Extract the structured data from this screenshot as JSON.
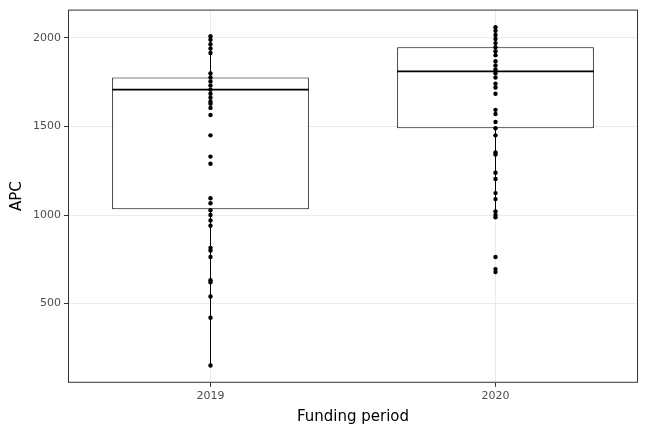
{
  "chart_data": {
    "type": "box",
    "x_label": "Funding period",
    "y_label": "APC",
    "categories": [
      "2019",
      "2020"
    ],
    "boxes": [
      {
        "whisker_low": 151,
        "q1": 1033,
        "median": 1708,
        "q3": 1777,
        "whisker_high": 2010
      },
      {
        "whisker_low": 987,
        "q1": 1490,
        "median": 1811,
        "q3": 1948,
        "whisker_high": 2060
      }
    ],
    "points": [
      [
        2010,
        1990,
        1965,
        1940,
        1915,
        1800,
        1777,
        1754,
        1731,
        1708,
        1685,
        1662,
        1640,
        1628,
        1605,
        1565,
        1450,
        1330,
        1290,
        1095,
        1067,
        1027,
        1000,
        970,
        940,
        815,
        800,
        763,
        632,
        620,
        540,
        420,
        151
      ],
      [
        2060,
        2040,
        2017,
        1994,
        1971,
        1948,
        1925,
        1902,
        1868,
        1845,
        1822,
        1800,
        1777,
        1742,
        1720,
        1685,
        1594,
        1571,
        1525,
        1490,
        1450,
        1353,
        1342,
        1239,
        1204,
        1124,
        1090,
        1021,
        1000,
        987,
        763,
        695,
        678
      ]
    ],
    "color": "#000000",
    "ylim": [
      53,
      2160
    ],
    "yticks": [
      500,
      1000,
      1500,
      2000
    ],
    "grid": true
  }
}
